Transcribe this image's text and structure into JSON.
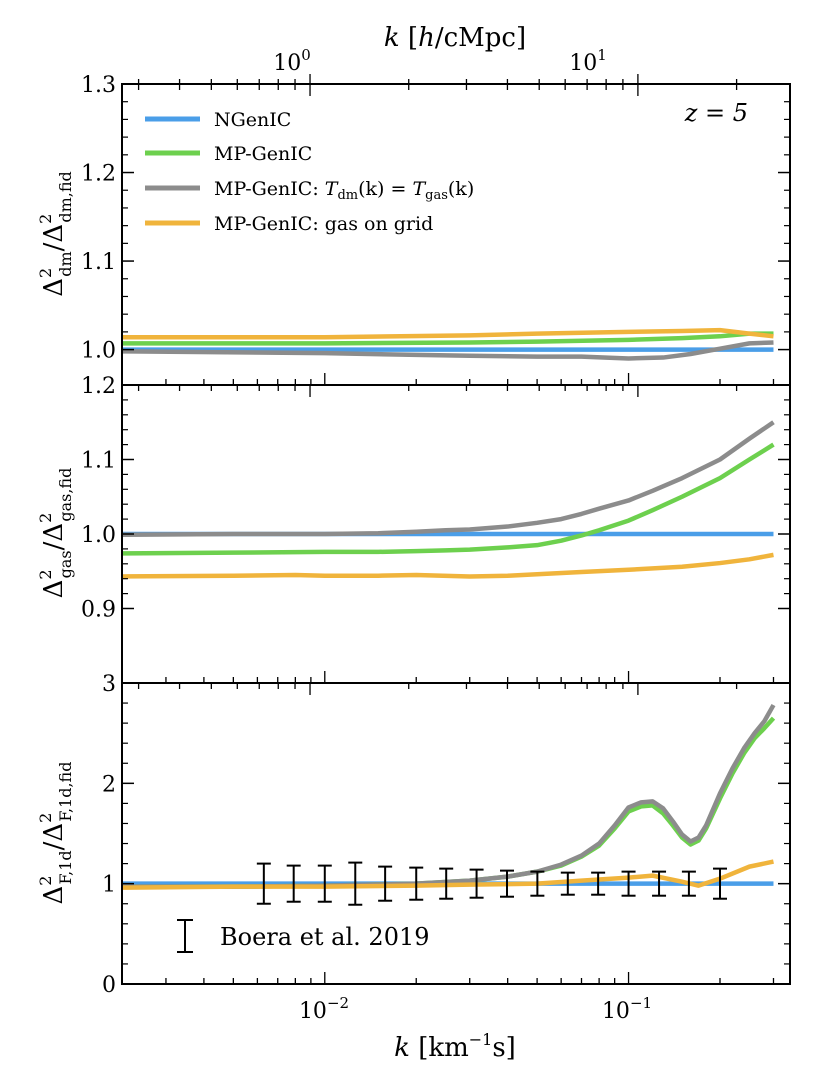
{
  "chart_data": {
    "type": "line",
    "top_axis": {
      "label": "k [h/cMpc]",
      "label_parts": [
        "k ",
        "[",
        "h",
        "/cMpc]"
      ],
      "ticks": [
        {
          "value": 1,
          "label": "10",
          "exp": "0"
        },
        {
          "value": 10,
          "label": "10",
          "exp": "1"
        }
      ],
      "scale": "log",
      "range": [
        0.267,
        29.1
      ]
    },
    "x_axis": {
      "label": "k [km⁻¹s]",
      "label_parts": [
        "k ",
        "[km",
        "−1",
        "s]"
      ],
      "ticks": [
        {
          "value": 0.01,
          "label": "10",
          "exp": "−2"
        },
        {
          "value": 0.1,
          "label": "10",
          "exp": "−1"
        }
      ],
      "scale": "log",
      "range": [
        0.00215,
        0.34
      ]
    },
    "legend": {
      "placement": "top-left",
      "entries": [
        {
          "label": "NGenIC",
          "color": "#4a9ee8"
        },
        {
          "label": "MP-GenIC",
          "color": "#6dd04e"
        },
        {
          "label": "MP-GenIC: T_dm(k) = T_gas(k)",
          "color": "#8c8c8c",
          "parts": {
            "a": "MP-GenIC: ",
            "T1": "T",
            "s1": "dm",
            "m": "(k) = ",
            "T2": "T",
            "s2": "gas",
            "e": "(k)"
          }
        },
        {
          "label": "MP-GenIC: gas on grid",
          "color": "#f0b43c"
        }
      ]
    },
    "annotations": {
      "redshift": "z = 5",
      "errorbar_label": "Boera et al. 2019"
    },
    "panels": [
      {
        "id": "dm",
        "ylabel": "Δ²_dm/Δ²_dm,fid",
        "ylabel_parts": {
          "D1": "Δ",
          "p1": "2",
          "s1": "dm",
          "sl": "/",
          "D2": "Δ",
          "p2": "2",
          "s2": "dm,fid"
        },
        "ylim": [
          0.96,
          1.3
        ],
        "yticks": [
          1.0,
          1.1,
          1.2,
          1.3
        ],
        "ytick_labels": [
          "1.0",
          "1.1",
          "1.2",
          "1.3"
        ],
        "series": [
          {
            "color": "#4a9ee8",
            "x": [
              0.00215,
              0.3
            ],
            "y": [
              1.0,
              1.0
            ]
          },
          {
            "color": "#6dd04e",
            "x": [
              0.00215,
              0.01,
              0.03,
              0.05,
              0.1,
              0.15,
              0.2,
              0.25,
              0.3
            ],
            "y": [
              1.007,
              1.007,
              1.008,
              1.009,
              1.011,
              1.013,
              1.015,
              1.018,
              1.018
            ]
          },
          {
            "color": "#8c8c8c",
            "x": [
              0.00215,
              0.01,
              0.02,
              0.03,
              0.05,
              0.07,
              0.1,
              0.13,
              0.16,
              0.2,
              0.25,
              0.3
            ],
            "y": [
              0.998,
              0.996,
              0.994,
              0.993,
              0.992,
              0.992,
              0.99,
              0.991,
              0.995,
              1.001,
              1.007,
              1.008
            ]
          },
          {
            "color": "#f0b43c",
            "x": [
              0.00215,
              0.01,
              0.03,
              0.05,
              0.1,
              0.15,
              0.2,
              0.25,
              0.3
            ],
            "y": [
              1.014,
              1.014,
              1.016,
              1.018,
              1.02,
              1.021,
              1.022,
              1.018,
              1.015
            ]
          }
        ]
      },
      {
        "id": "gas",
        "ylabel": "Δ²_gas/Δ²_gas,fid",
        "ylabel_parts": {
          "D1": "Δ",
          "p1": "2",
          "s1": "gas",
          "sl": "/",
          "D2": "Δ",
          "p2": "2",
          "s2": "gas,fid"
        },
        "ylim": [
          0.8,
          1.2
        ],
        "yticks": [
          0.9,
          1.0,
          1.1,
          1.2
        ],
        "ytick_labels": [
          "0.9",
          "1.0",
          "1.1",
          "1.2"
        ],
        "series": [
          {
            "color": "#4a9ee8",
            "x": [
              0.00215,
              0.3
            ],
            "y": [
              1.0,
              1.0
            ]
          },
          {
            "color": "#6dd04e",
            "x": [
              0.00215,
              0.005,
              0.01,
              0.015,
              0.02,
              0.025,
              0.03,
              0.04,
              0.05,
              0.06,
              0.07,
              0.08,
              0.1,
              0.12,
              0.15,
              0.2,
              0.25,
              0.3
            ],
            "y": [
              0.974,
              0.975,
              0.976,
              0.976,
              0.977,
              0.978,
              0.979,
              0.982,
              0.985,
              0.991,
              0.998,
              1.005,
              1.018,
              1.032,
              1.05,
              1.075,
              1.1,
              1.12
            ]
          },
          {
            "color": "#8c8c8c",
            "x": [
              0.00215,
              0.005,
              0.01,
              0.015,
              0.02,
              0.025,
              0.03,
              0.04,
              0.05,
              0.06,
              0.07,
              0.08,
              0.1,
              0.12,
              0.15,
              0.2,
              0.25,
              0.3
            ],
            "y": [
              0.999,
              1.0,
              1.0,
              1.001,
              1.003,
              1.005,
              1.006,
              1.01,
              1.015,
              1.02,
              1.027,
              1.034,
              1.045,
              1.058,
              1.075,
              1.1,
              1.128,
              1.15
            ]
          },
          {
            "color": "#f0b43c",
            "x": [
              0.00215,
              0.005,
              0.008,
              0.01,
              0.015,
              0.02,
              0.03,
              0.04,
              0.05,
              0.07,
              0.1,
              0.15,
              0.2,
              0.25,
              0.3
            ],
            "y": [
              0.943,
              0.944,
              0.945,
              0.944,
              0.944,
              0.945,
              0.943,
              0.944,
              0.946,
              0.949,
              0.952,
              0.956,
              0.961,
              0.966,
              0.972
            ]
          }
        ]
      },
      {
        "id": "flux",
        "ylabel": "Δ²_F,1d/Δ²_F,1d,fid",
        "ylabel_parts": {
          "D1": "Δ",
          "p1": "2",
          "s1": "F,1d",
          "sl": "/",
          "D2": "Δ",
          "p2": "2",
          "s2": "F,1d,fid"
        },
        "ylim": [
          0,
          3
        ],
        "yticks": [
          0,
          1,
          2,
          3
        ],
        "ytick_labels": [
          "0",
          "1",
          "2",
          "3"
        ],
        "series": [
          {
            "color": "#4a9ee8",
            "x": [
              0.00215,
              0.3
            ],
            "y": [
              1.0,
              1.0
            ]
          },
          {
            "color": "#6dd04e",
            "x": [
              0.00215,
              0.005,
              0.01,
              0.02,
              0.03,
              0.04,
              0.05,
              0.06,
              0.07,
              0.08,
              0.09,
              0.1,
              0.11,
              0.12,
              0.13,
              0.14,
              0.15,
              0.16,
              0.17,
              0.18,
              0.2,
              0.22,
              0.24,
              0.26,
              0.28,
              0.3
            ],
            "y": [
              0.97,
              0.97,
              0.98,
              1.0,
              1.03,
              1.07,
              1.12,
              1.18,
              1.27,
              1.38,
              1.55,
              1.72,
              1.77,
              1.78,
              1.7,
              1.58,
              1.46,
              1.39,
              1.43,
              1.55,
              1.85,
              2.1,
              2.3,
              2.45,
              2.55,
              2.65
            ]
          },
          {
            "color": "#8c8c8c",
            "x": [
              0.00215,
              0.005,
              0.01,
              0.02,
              0.03,
              0.04,
              0.05,
              0.06,
              0.07,
              0.08,
              0.09,
              0.1,
              0.11,
              0.12,
              0.13,
              0.14,
              0.15,
              0.16,
              0.17,
              0.18,
              0.2,
              0.22,
              0.24,
              0.26,
              0.28,
              0.3
            ],
            "y": [
              0.97,
              0.97,
              0.98,
              1.0,
              1.03,
              1.07,
              1.12,
              1.19,
              1.28,
              1.4,
              1.58,
              1.76,
              1.81,
              1.82,
              1.75,
              1.62,
              1.49,
              1.42,
              1.46,
              1.58,
              1.9,
              2.15,
              2.35,
              2.5,
              2.62,
              2.78
            ]
          },
          {
            "color": "#f0b43c",
            "x": [
              0.00215,
              0.005,
              0.01,
              0.02,
              0.03,
              0.05,
              0.07,
              0.1,
              0.12,
              0.15,
              0.17,
              0.2,
              0.25,
              0.3
            ],
            "y": [
              0.96,
              0.97,
              0.97,
              0.98,
              0.99,
              1.0,
              1.03,
              1.06,
              1.08,
              1.02,
              0.98,
              1.05,
              1.17,
              1.22
            ]
          }
        ],
        "errorbars": {
          "color": "#000000",
          "x": [
            0.0063,
            0.0079,
            0.01,
            0.0126,
            0.0158,
            0.02,
            0.0251,
            0.0316,
            0.0398,
            0.0501,
            0.0631,
            0.0794,
            0.1,
            0.126,
            0.158,
            0.2
          ],
          "y": [
            1.0,
            1.0,
            1.0,
            1.0,
            1.0,
            1.0,
            1.0,
            1.0,
            1.0,
            1.0,
            1.0,
            1.0,
            1.0,
            1.0,
            1.0,
            1.0
          ],
          "err": [
            0.2,
            0.18,
            0.18,
            0.21,
            0.17,
            0.16,
            0.15,
            0.14,
            0.13,
            0.12,
            0.11,
            0.11,
            0.12,
            0.12,
            0.12,
            0.15
          ]
        }
      }
    ]
  }
}
